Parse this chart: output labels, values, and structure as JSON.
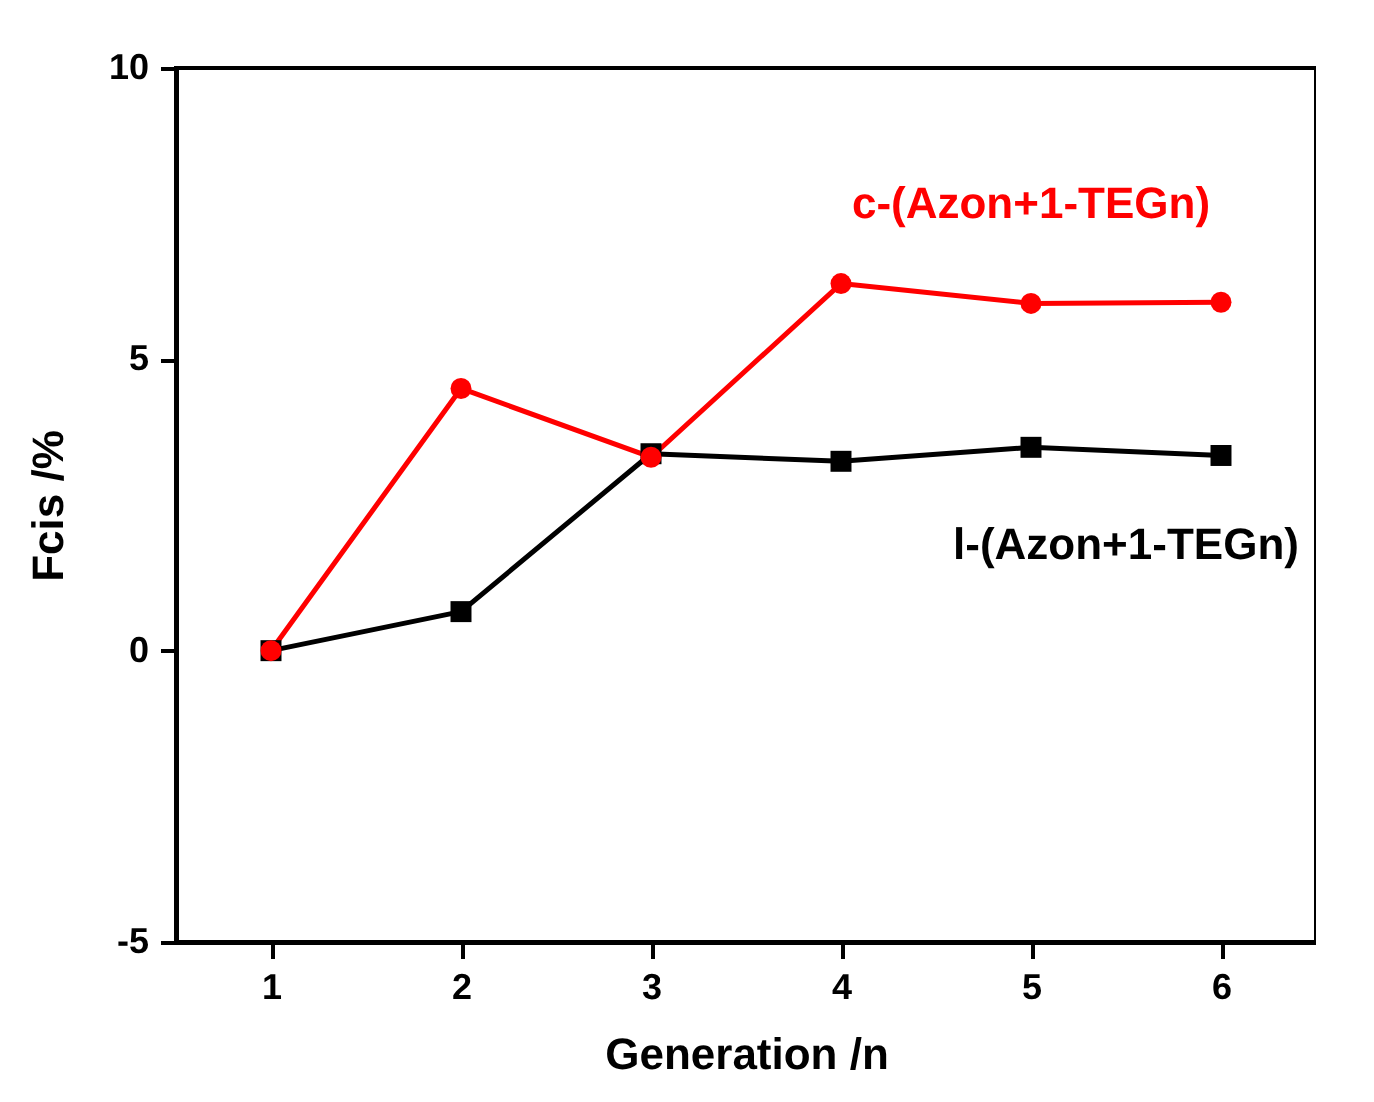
{
  "chart_data": {
    "type": "line",
    "xlabel": "Generation /n",
    "ylabel": "Fcis /%",
    "x": [
      1,
      2,
      3,
      4,
      5,
      6
    ],
    "series": [
      {
        "name": "c-(Azon+1-TEGn)",
        "color": "#ff0000",
        "marker": "circle",
        "values": [
          0,
          4.5,
          3.32,
          6.3,
          5.96,
          5.98
        ]
      },
      {
        "name": "l-(Azon+1-TEGn)",
        "color": "#000000",
        "marker": "square",
        "values": [
          0,
          0.67,
          3.38,
          3.25,
          3.49,
          3.35
        ]
      }
    ],
    "xlim": [
      0.5,
      6.5
    ],
    "xticks": [
      1,
      2,
      3,
      4,
      5,
      6
    ],
    "ylim": [
      -5,
      10
    ],
    "yticks": [
      -5,
      0,
      5,
      10
    ],
    "grid": false,
    "legend": false,
    "line_style": "solid"
  }
}
